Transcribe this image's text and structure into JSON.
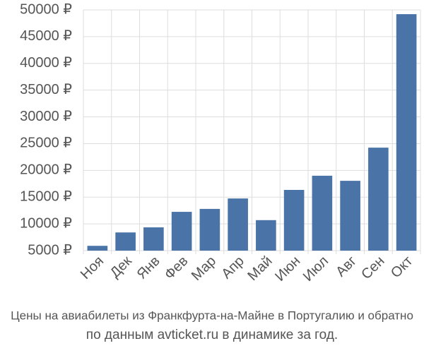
{
  "chart_data": {
    "type": "bar",
    "categories": [
      "Ноя",
      "Дек",
      "Янв",
      "Фев",
      "Мар",
      "Апр",
      "Май",
      "Июн",
      "Июл",
      "Авг",
      "Сен",
      "Окт"
    ],
    "values": [
      5900,
      8400,
      9350,
      12250,
      12800,
      14750,
      10700,
      16350,
      19000,
      18050,
      24250,
      49200
    ],
    "color": "#4a74a8",
    "ylim": [
      5000,
      50000
    ],
    "yticks": [
      {
        "value": 5000,
        "label": "5000 ₽"
      },
      {
        "value": 10000,
        "label": "10000 ₽"
      },
      {
        "value": 15000,
        "label": "15000 ₽"
      },
      {
        "value": 20000,
        "label": "20000 ₽"
      },
      {
        "value": 25000,
        "label": "25000 ₽"
      },
      {
        "value": 30000,
        "label": "30000 ₽"
      },
      {
        "value": 35000,
        "label": "35000 ₽"
      },
      {
        "value": 40000,
        "label": "40000 ₽"
      },
      {
        "value": 45000,
        "label": "45000 ₽"
      },
      {
        "value": 50000,
        "label": "50000 ₽"
      }
    ],
    "grid": true,
    "caption_lines": [
      "Цены на авиабилеты из Франкфурта-на-Майне в Португалию и обратно",
      "по данным avticket.ru в динамике за год."
    ]
  }
}
